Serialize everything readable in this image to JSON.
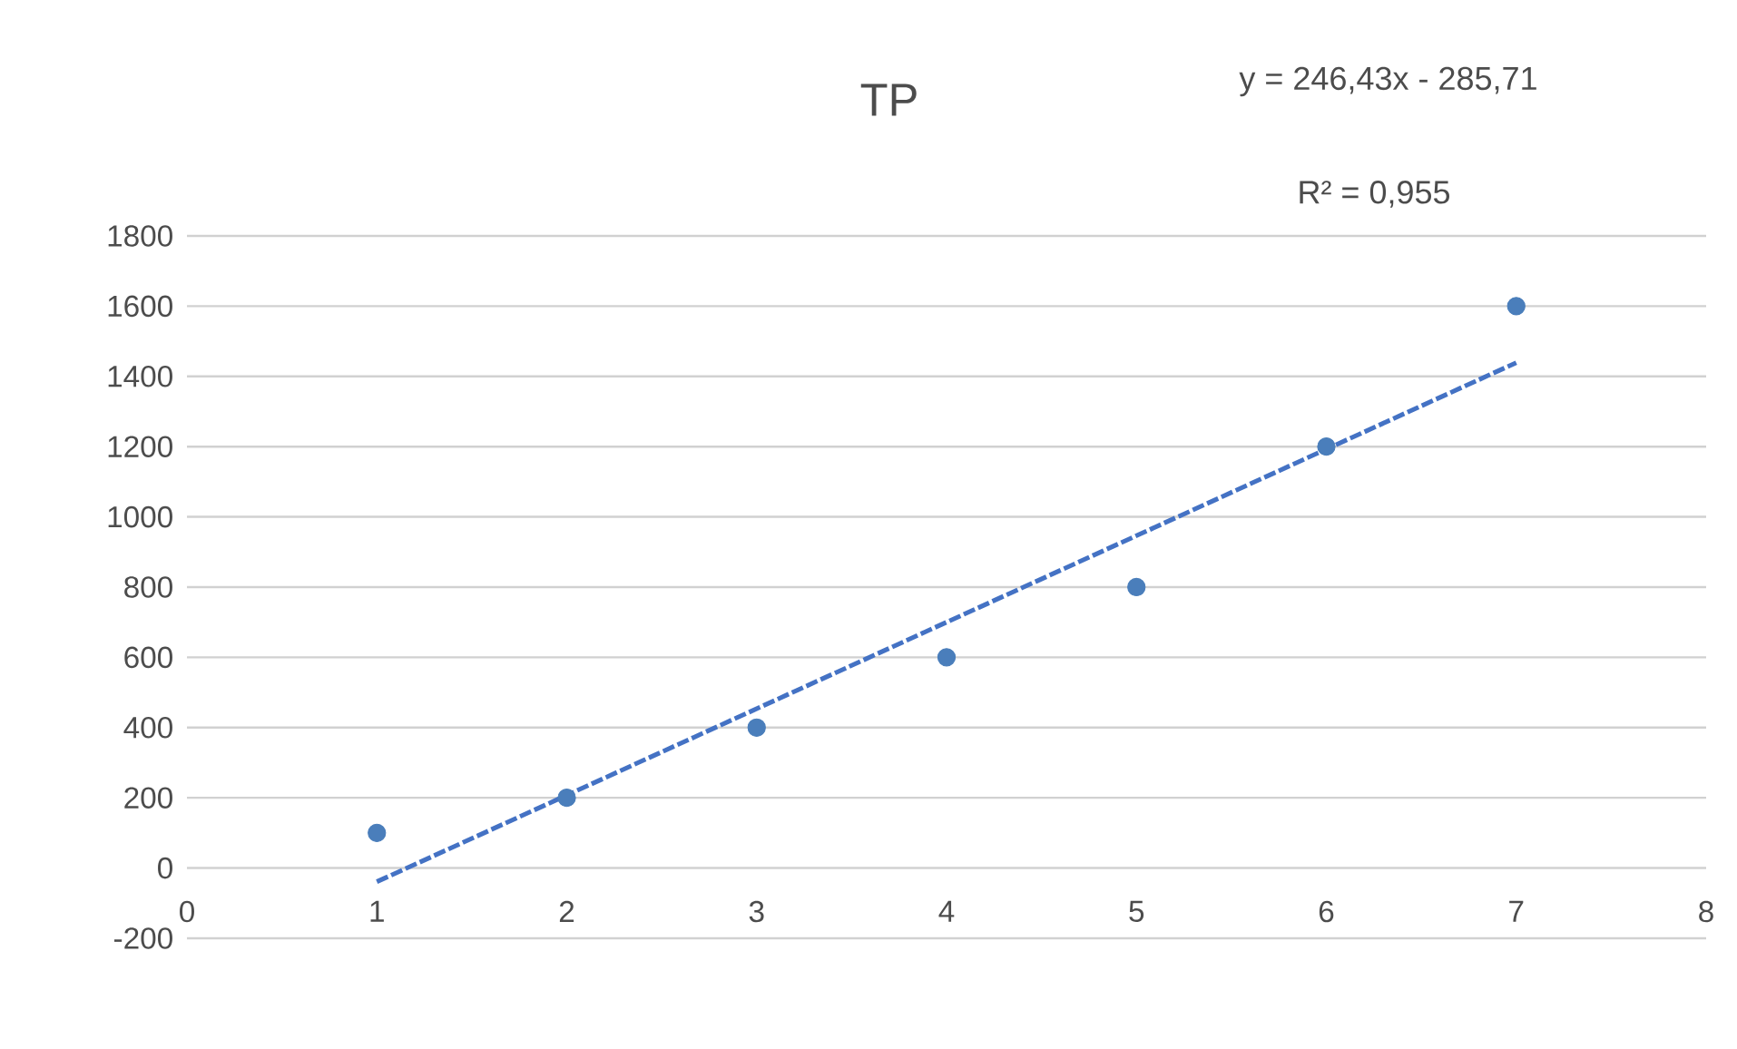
{
  "chart_data": {
    "type": "scatter",
    "title": "TP",
    "annotations": [
      "y = 246,43x - 285,71",
      "R² = 0,955"
    ],
    "xlim": [
      0,
      8
    ],
    "xticks": [
      0,
      1,
      2,
      3,
      4,
      5,
      6,
      7,
      8
    ],
    "ylim": [
      -200,
      1800
    ],
    "yticks": [
      -200,
      0,
      200,
      400,
      600,
      800,
      1000,
      1200,
      1400,
      1600,
      1800
    ],
    "grid": "y",
    "series": [
      {
        "marker": "circle",
        "color": "#4a7ebb",
        "x": [
          1,
          2,
          3,
          4,
          5,
          6,
          7
        ],
        "values": [
          100,
          200,
          400,
          600,
          800,
          1200,
          1600
        ]
      },
      {
        "type": "line",
        "line_style": "dashed",
        "marker": "none",
        "color": "#4472c4",
        "x": [
          1,
          7
        ],
        "values": [
          -39,
          1439
        ]
      }
    ]
  }
}
